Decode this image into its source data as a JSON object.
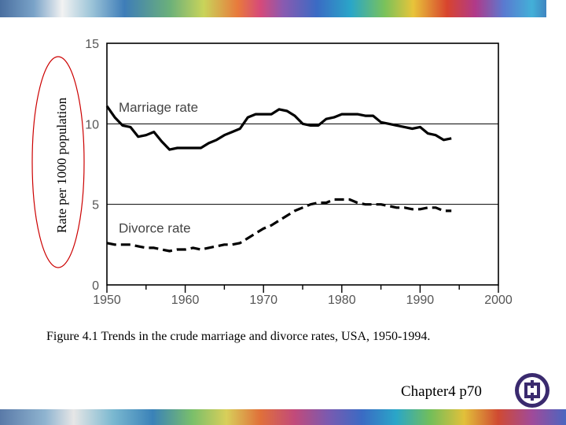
{
  "chart_data": {
    "type": "line",
    "title": "Figure 4.1  Trends in the crude marriage and divorce rates, USA, 1950-1994.",
    "xlabel": "",
    "ylabel": "Rate per 1000 population",
    "xlim": [
      1950,
      2000
    ],
    "ylim": [
      0,
      15
    ],
    "x_ticks": [
      "1950",
      "1960",
      "1970",
      "1980",
      "1990",
      "2000"
    ],
    "y_ticks": [
      "0",
      "5",
      "10",
      "15"
    ],
    "gridlines_y": [
      5,
      10
    ],
    "series": [
      {
        "name": "Marriage rate",
        "style": "solid",
        "x": [
          1950,
          1951,
          1952,
          1953,
          1954,
          1955,
          1956,
          1957,
          1958,
          1959,
          1960,
          1961,
          1962,
          1963,
          1964,
          1965,
          1966,
          1967,
          1968,
          1969,
          1970,
          1971,
          1972,
          1973,
          1974,
          1975,
          1976,
          1977,
          1978,
          1979,
          1980,
          1981,
          1982,
          1983,
          1984,
          1985,
          1986,
          1987,
          1988,
          1989,
          1990,
          1991,
          1992,
          1993,
          1994
        ],
        "values": [
          11.1,
          10.4,
          9.9,
          9.8,
          9.2,
          9.3,
          9.5,
          8.9,
          8.4,
          8.5,
          8.5,
          8.5,
          8.5,
          8.8,
          9.0,
          9.3,
          9.5,
          9.7,
          10.4,
          10.6,
          10.6,
          10.6,
          10.9,
          10.8,
          10.5,
          10.0,
          9.9,
          9.9,
          10.3,
          10.4,
          10.6,
          10.6,
          10.6,
          10.5,
          10.5,
          10.1,
          10.0,
          9.9,
          9.8,
          9.7,
          9.8,
          9.4,
          9.3,
          9.0,
          9.1
        ]
      },
      {
        "name": "Divorce rate",
        "style": "dashed",
        "x": [
          1950,
          1951,
          1952,
          1953,
          1954,
          1955,
          1956,
          1957,
          1958,
          1959,
          1960,
          1961,
          1962,
          1963,
          1964,
          1965,
          1966,
          1967,
          1968,
          1969,
          1970,
          1971,
          1972,
          1973,
          1974,
          1975,
          1976,
          1977,
          1978,
          1979,
          1980,
          1981,
          1982,
          1983,
          1984,
          1985,
          1986,
          1987,
          1988,
          1989,
          1990,
          1991,
          1992,
          1993,
          1994
        ],
        "values": [
          2.6,
          2.5,
          2.5,
          2.5,
          2.4,
          2.3,
          2.3,
          2.2,
          2.1,
          2.2,
          2.2,
          2.3,
          2.2,
          2.3,
          2.4,
          2.5,
          2.5,
          2.6,
          2.9,
          3.2,
          3.5,
          3.7,
          4.0,
          4.3,
          4.6,
          4.8,
          5.0,
          5.1,
          5.1,
          5.3,
          5.3,
          5.3,
          5.1,
          5.0,
          5.0,
          5.0,
          4.9,
          4.8,
          4.8,
          4.7,
          4.7,
          4.8,
          4.8,
          4.6,
          4.6
        ]
      }
    ],
    "colors": {
      "line": "#000000",
      "grid": "#000000",
      "highlight_ellipse": "#cc0000"
    }
  },
  "footer": {
    "label": "Chapter4 p70"
  },
  "logo": {
    "name": "publisher-logo"
  }
}
